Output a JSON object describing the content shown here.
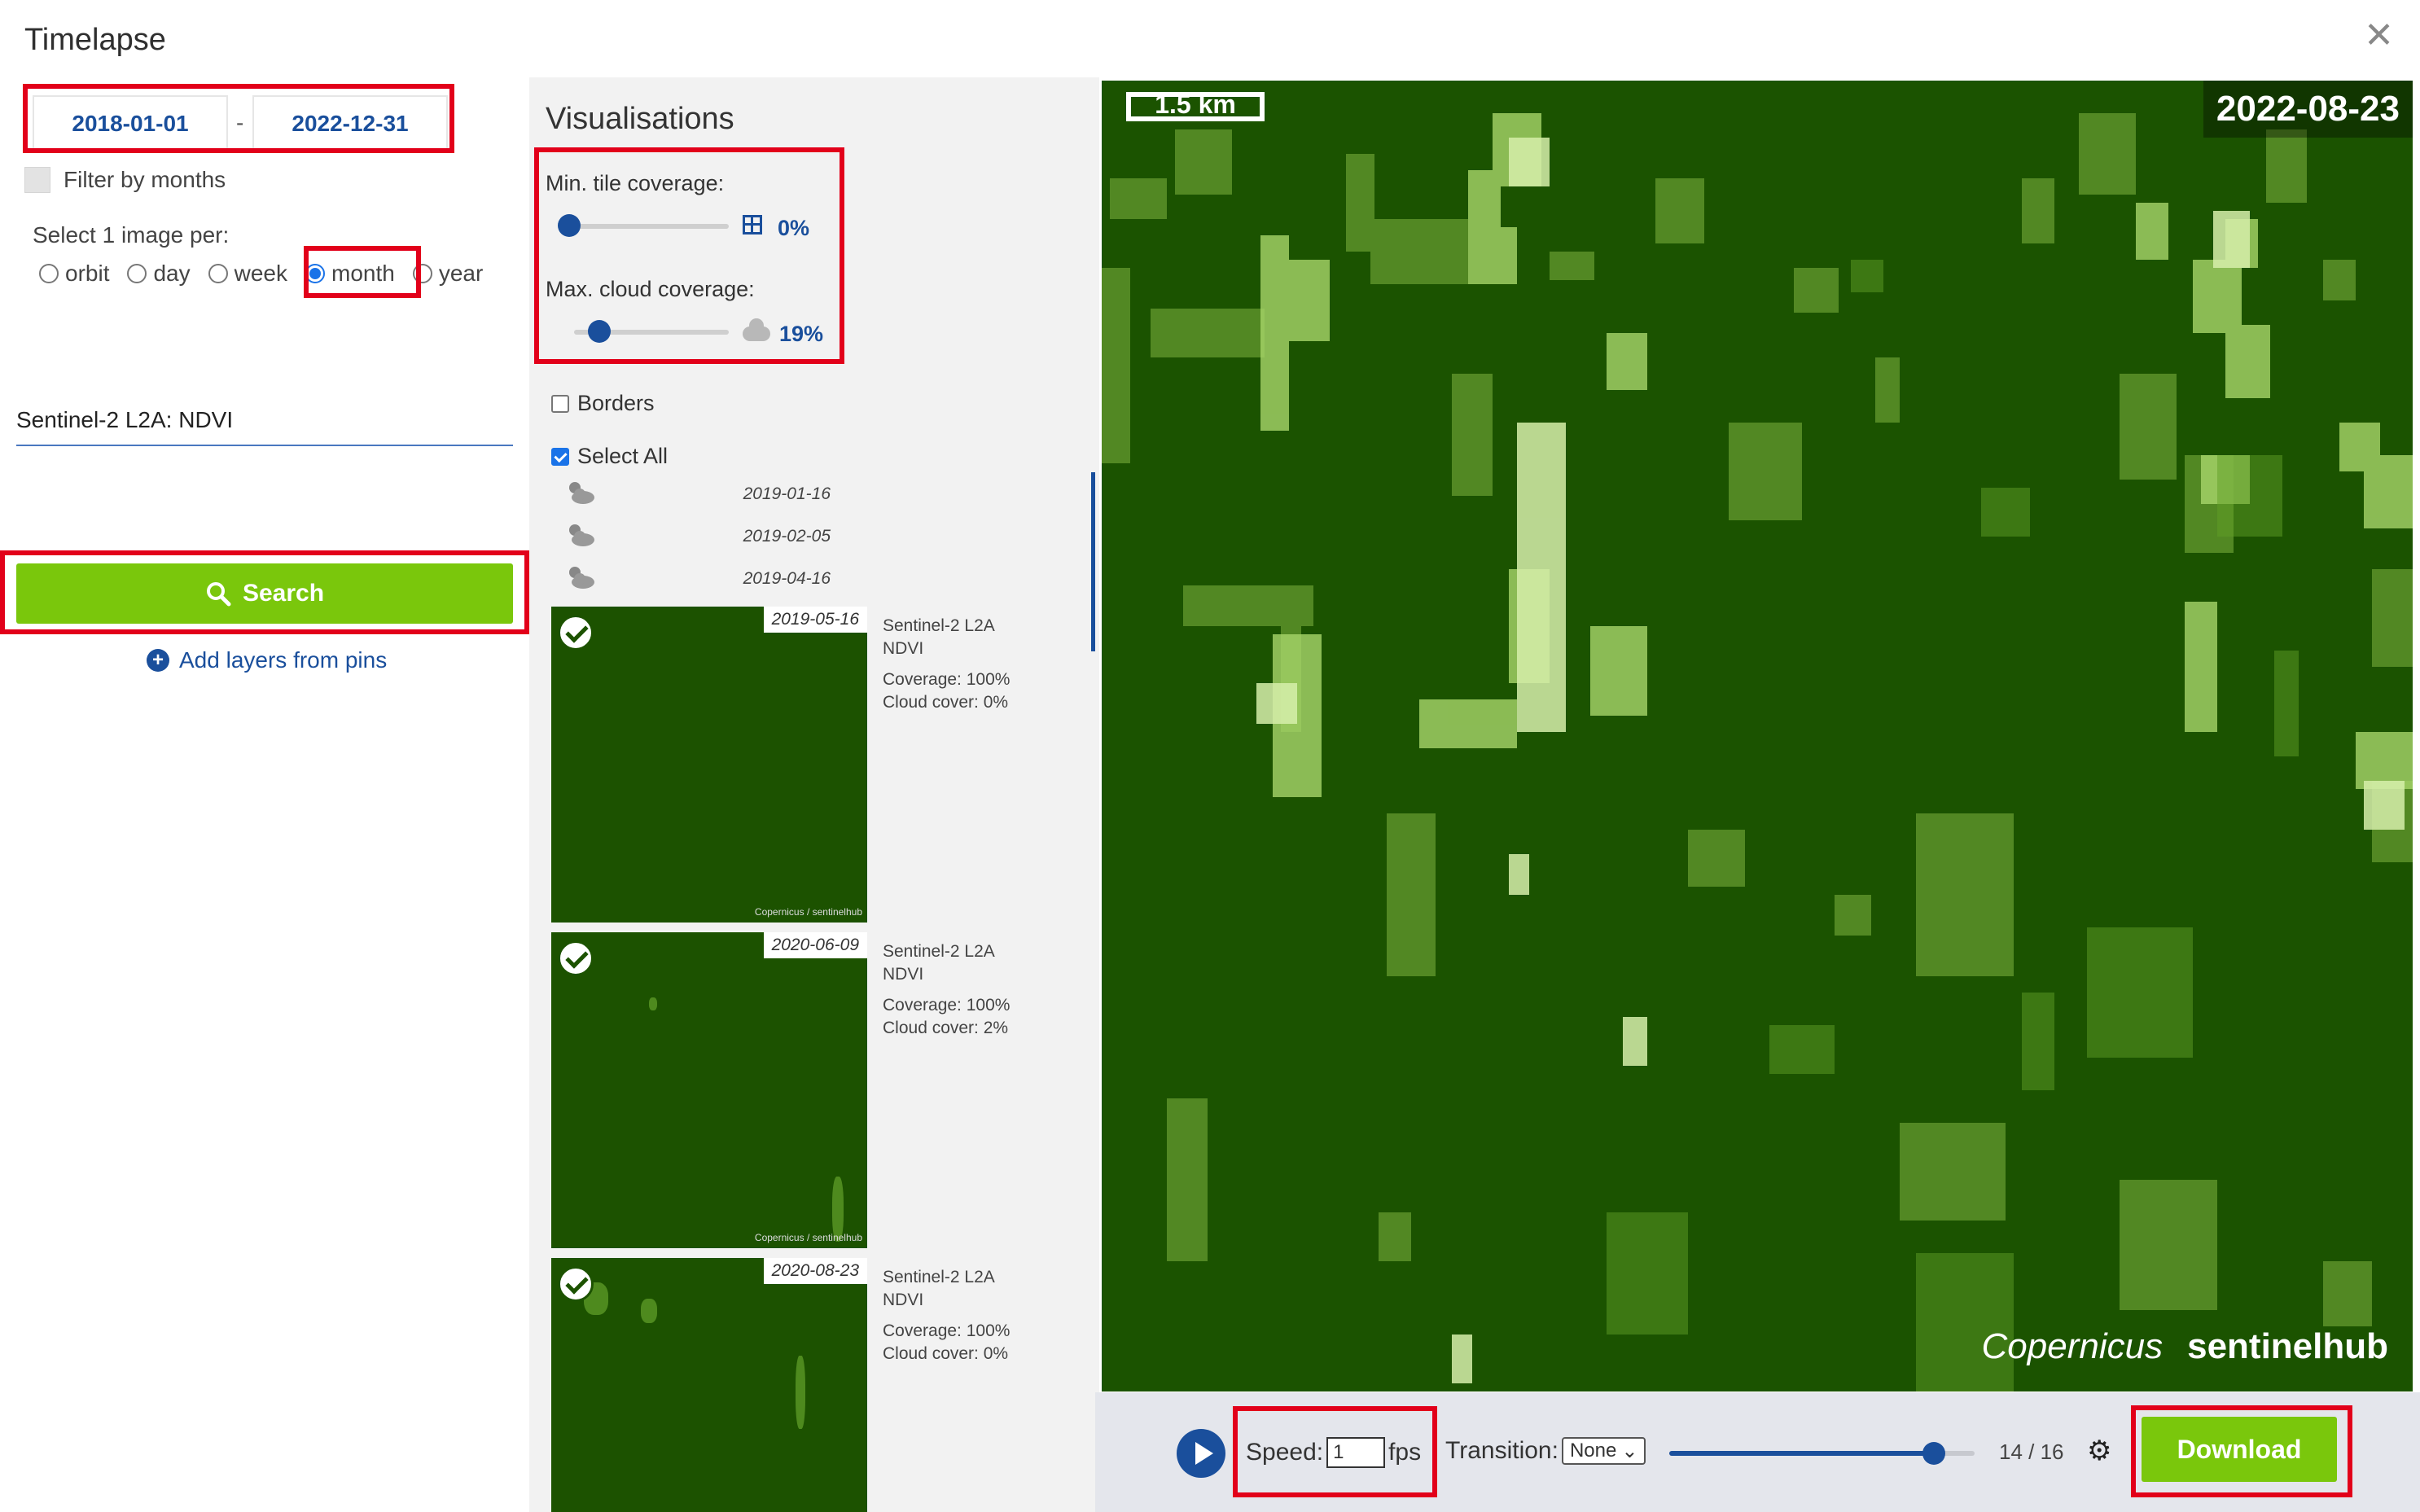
{
  "window": {
    "title": "Timelapse",
    "close_icon": "close-icon"
  },
  "date_range": {
    "from": "2018-01-01",
    "separator": "-",
    "to": "2022-12-31"
  },
  "filter_by_months": {
    "label": "Filter by months",
    "checked": false
  },
  "select_image_per": {
    "label": "Select 1 image per:",
    "options": [
      "orbit",
      "day",
      "week",
      "month",
      "year"
    ],
    "selected": "month"
  },
  "layer": {
    "name": "Sentinel-2 L2A: NDVI"
  },
  "search": {
    "label": "Search",
    "icon": "search-icon"
  },
  "add_layers": {
    "label": "Add layers from pins",
    "icon": "plus-circle-icon"
  },
  "visualisations": {
    "title": "Visualisations",
    "min_tile_coverage": {
      "label": "Min. tile coverage:",
      "value": "0%",
      "fraction": 0.0
    },
    "max_cloud_coverage": {
      "label": "Max. cloud coverage:",
      "value": "19%",
      "fraction": 0.19
    },
    "borders": {
      "label": "Borders",
      "checked": false
    },
    "select_all": {
      "label": "Select All",
      "checked": true
    }
  },
  "images_small": [
    {
      "date": "2019-01-16",
      "icon": "cloudy-sun-icon"
    },
    {
      "date": "2019-02-05",
      "icon": "cloudy-sun-icon"
    },
    {
      "date": "2019-04-16",
      "icon": "cloudy-sun-icon"
    }
  ],
  "images": [
    {
      "date": "2019-05-16",
      "layer": "Sentinel-2 L2A",
      "type": "NDVI",
      "coverage": "Coverage: 100%",
      "cloud": "Cloud cover: 0%",
      "watermark": "Copernicus / sentinelhub"
    },
    {
      "date": "2020-06-09",
      "layer": "Sentinel-2 L2A",
      "type": "NDVI",
      "coverage": "Coverage: 100%",
      "cloud": "Cloud cover: 2%",
      "watermark": "Copernicus / sentinelhub"
    },
    {
      "date": "2020-08-23",
      "layer": "Sentinel-2 L2A",
      "type": "NDVI",
      "coverage": "Coverage: 100%",
      "cloud": "Cloud cover: 0%"
    }
  ],
  "preview": {
    "scale": "1.5 km",
    "date": "2022-08-23",
    "logo_copernicus": "Copernicus",
    "logo_sentinelhub": "sentinelhub"
  },
  "player": {
    "speed_label": "Speed:",
    "speed_value": "1",
    "speed_unit": "fps",
    "transition_label": "Transition:",
    "transition_value": "None",
    "frame": "14 / 16",
    "frame_fraction": 0.8667,
    "download_label": "Download",
    "settings_icon": "gears-icon"
  },
  "colors": {
    "accent_green": "#7ac70c",
    "brand_blue": "#1a4f9c",
    "highlight_red": "#e2001a",
    "map_green": "#1b5300"
  }
}
